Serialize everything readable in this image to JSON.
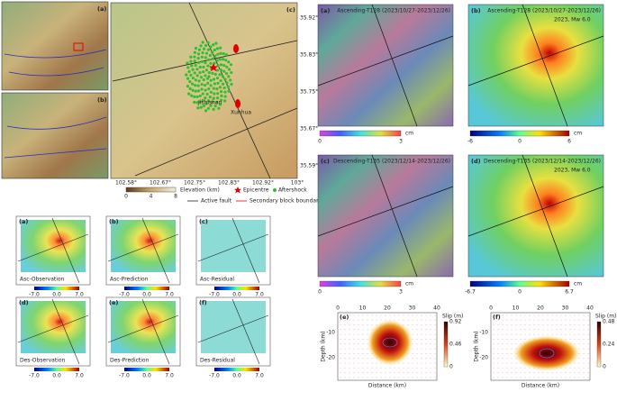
{
  "overview": {
    "panel_labels": [
      "(a)",
      "(b)",
      "(c)"
    ],
    "lon_ticks": [
      "102.58°",
      "102.67°",
      "102.75°",
      "102.83°",
      "102.92°",
      "103°"
    ],
    "lat_ticks": [
      "35.92°",
      "35.83°",
      "35.75°",
      "35.67°",
      "35.59°"
    ],
    "places": [
      "Jishishan",
      "Xunhua"
    ],
    "elevation_title": "Elevation (km)",
    "elevation_ticks": [
      "0",
      "4",
      "8"
    ],
    "legend": [
      "Epicentre",
      "Aftershock",
      "Active fault",
      "Secondary block boundary"
    ]
  },
  "model_panels": [
    {
      "label": "(a)",
      "caption": "Asc-Observation"
    },
    {
      "label": "(b)",
      "caption": "Asc-Prediction"
    },
    {
      "label": "(c)",
      "caption": "Asc-Residual"
    },
    {
      "label": "(d)",
      "caption": "Des-Observation"
    },
    {
      "label": "(e)",
      "caption": "Des-Prediction"
    },
    {
      "label": "(f)",
      "caption": "Des-Residual"
    }
  ],
  "model_colorbar": [
    "-7.0",
    "0.0",
    "7.0"
  ],
  "insar_panels": [
    {
      "label": "(a)",
      "title": "Ascending-T128 (2023/10/27-2023/12/26)",
      "colorbar": [
        "0",
        "3"
      ],
      "unit": "cm",
      "kind": "wrapped"
    },
    {
      "label": "(b)",
      "title": "Ascending-T128 (2023/10/27-2023/12/26)",
      "colorbar": [
        "-6",
        "0",
        "6"
      ],
      "unit": "cm",
      "kind": "unwrapped",
      "note": "2023, Mw 6.0"
    },
    {
      "label": "(c)",
      "title": "Descending-T135 (2023/12/14-2023/12/26)",
      "colorbar": [
        "0",
        "3"
      ],
      "unit": "cm",
      "kind": "wrapped"
    },
    {
      "label": "(d)",
      "title": "Descending-T135 (2023/12/14-2023/12/26)",
      "colorbar": [
        "-6.7",
        "0",
        "6.7"
      ],
      "unit": "cm",
      "kind": "unwrapped",
      "note": "2023, Mw 6.0"
    }
  ],
  "slip_panels": [
    {
      "label": "(e)",
      "xlabel": "Distance (km)",
      "ylabel": "Depth (km)",
      "xticks": [
        "0",
        "10",
        "20",
        "30",
        "40"
      ],
      "yticks": [
        "-10",
        "-20"
      ],
      "colorbar_title": "Slip (m)",
      "colorbar": [
        "0.92",
        "0.46",
        "0"
      ]
    },
    {
      "label": "(f)",
      "xlabel": "Distance (km)",
      "ylabel": "Depth (km)",
      "xticks": [
        "0",
        "10",
        "20",
        "30",
        "40"
      ],
      "yticks": [
        "-10",
        "-20"
      ],
      "colorbar_title": "Slip (m)",
      "colorbar": [
        "0.48",
        "0.24",
        "0"
      ]
    }
  ]
}
